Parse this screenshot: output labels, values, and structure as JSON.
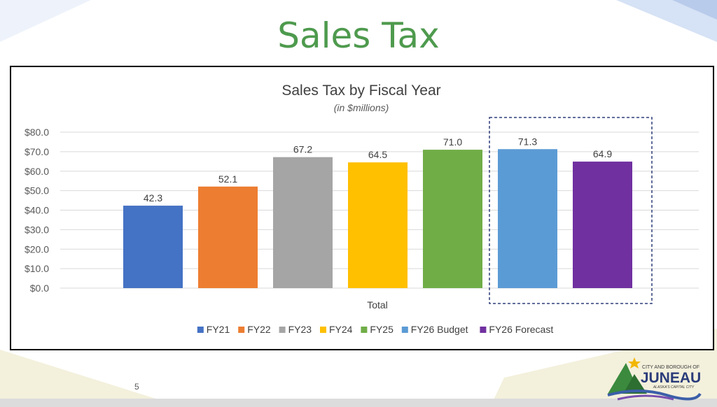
{
  "slide": {
    "title": "Sales Tax",
    "page_number": "5"
  },
  "logo": {
    "line1": "CITY AND BOROUGH OF",
    "name": "JUNEAU",
    "tagline": "ALASKA'S CAPITAL CITY"
  },
  "colors": {
    "title_green": "#4e9a4e",
    "highlight_border": "#2f3e7a"
  },
  "chart_data": {
    "type": "bar",
    "title": "Sales Tax by Fiscal Year",
    "subtitle": "(in $millions)",
    "xlabel": "Total",
    "ylim": [
      0,
      80
    ],
    "ytick_labels": [
      "$0.0",
      "$10.0",
      "$20.0",
      "$30.0",
      "$40.0",
      "$50.0",
      "$60.0",
      "$70.0",
      "$80.0"
    ],
    "ytick_values": [
      0,
      10,
      20,
      30,
      40,
      50,
      60,
      70,
      80
    ],
    "grid": true,
    "legend_position": "bottom",
    "series": [
      {
        "name": "FY21",
        "value": 42.3,
        "label": "42.3",
        "color": "#4472c4"
      },
      {
        "name": "FY22",
        "value": 52.1,
        "label": "52.1",
        "color": "#ed7d31"
      },
      {
        "name": "FY23",
        "value": 67.2,
        "label": "67.2",
        "color": "#a5a5a5"
      },
      {
        "name": "FY24",
        "value": 64.5,
        "label": "64.5",
        "color": "#ffc000"
      },
      {
        "name": "FY25",
        "value": 71.0,
        "label": "71.0",
        "color": "#70ad47"
      },
      {
        "name": "FY26 Budget",
        "value": 71.3,
        "label": "71.3",
        "color": "#5b9bd5"
      },
      {
        "name": "FY26 Forecast",
        "value": 64.9,
        "label": "64.9",
        "color": "#7030a0"
      }
    ],
    "highlighted_series": [
      "FY26 Budget",
      "FY26 Forecast"
    ]
  }
}
